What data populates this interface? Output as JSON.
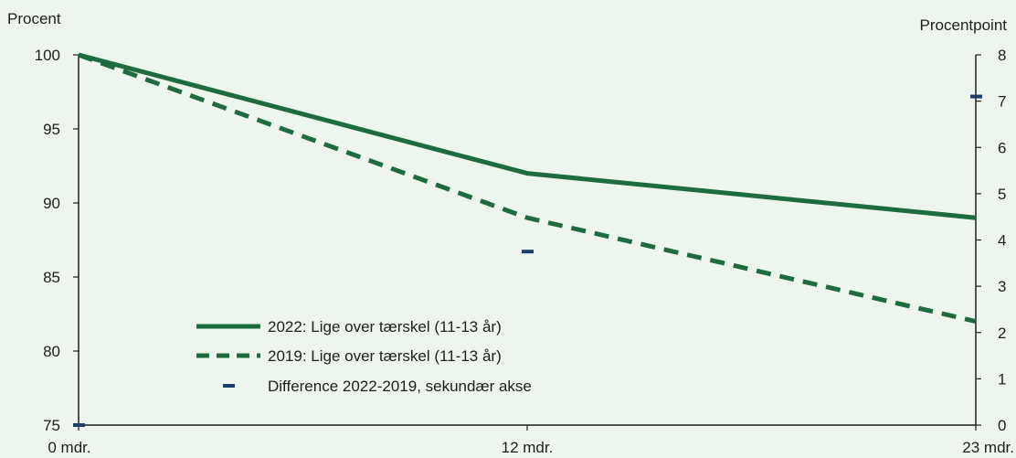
{
  "chart_data": {
    "type": "line",
    "x_categories": [
      "0 mdr.",
      "12 mdr.",
      "23 mdr."
    ],
    "left_axis": {
      "label": "Procent",
      "min": 75,
      "max": 100,
      "ticks": [
        "75",
        "80",
        "85",
        "90",
        "95",
        "100"
      ]
    },
    "right_axis": {
      "label": "Procentpoint",
      "min": 0,
      "max": 8,
      "ticks": [
        "0",
        "1",
        "2",
        "3",
        "4",
        "5",
        "6",
        "7",
        "8"
      ]
    },
    "series": [
      {
        "name": "2022: Lige over tærskel (11-13 år)",
        "axis": "left",
        "style": "solid",
        "color": "#1e6b3f",
        "values": [
          100,
          92,
          89
        ]
      },
      {
        "name": "2019: Lige over tærskel (11-13 år)",
        "axis": "left",
        "style": "dashed",
        "color": "#1e6b3f",
        "values": [
          100,
          89,
          82
        ]
      },
      {
        "name": "Difference 2022-2019, sekundær akse",
        "axis": "right",
        "style": "marker",
        "color": "#1f3d6b",
        "values": [
          0,
          3.75,
          7.1
        ]
      }
    ],
    "legend_position": "bottom-left",
    "grid": false
  }
}
